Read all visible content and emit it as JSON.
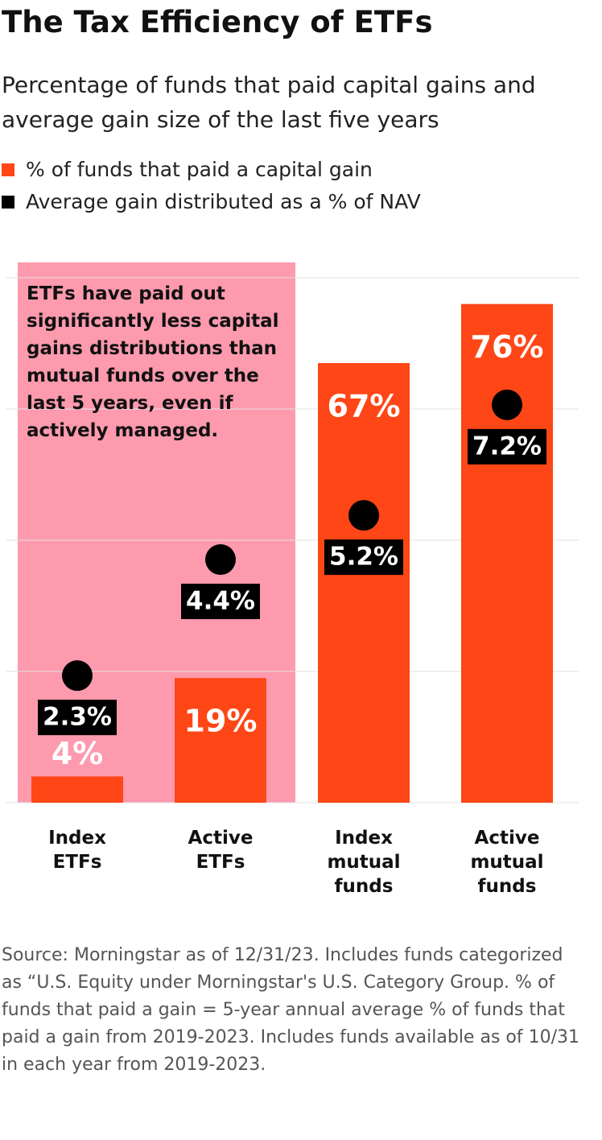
{
  "chart_data": {
    "type": "bar",
    "title": "The Tax Efficiency of ETFs",
    "subtitle": "Percentage of funds that paid capital gains and average gain size of the last five years",
    "annotation": "ETFs have paid out significantly less capital gains distributions than mutual funds over the last 5 years, even if actively managed.",
    "source": "Source: Morningstar as of 12/31/23. Includes funds categorized as “U.S. Equity under Morningstar's U.S. Category Group. % of funds that paid a gain = 5-year annual average % of funds that paid a gain from 2019-2023. Includes funds available as of 10/31 in each year from 2019-2023.",
    "categories": [
      "Index ETFs",
      "Active ETFs",
      "Index mutual funds",
      "Active mutual funds"
    ],
    "series": [
      {
        "name": "% of funds that paid a capital gain",
        "color": "#ff4616",
        "values": [
          4,
          19,
          67,
          76
        ],
        "value_labels": [
          "4%",
          "19%",
          "67%",
          "76%"
        ]
      },
      {
        "name": "Average gain distributed as a % of NAV",
        "color": "#000000",
        "axis": "y2",
        "values": [
          2.3,
          4.4,
          5.2,
          7.2
        ],
        "value_labels": [
          "2.3%",
          "4.4%",
          "5.2%",
          "7.2%"
        ]
      }
    ],
    "ylim": [
      0,
      80
    ],
    "yticks": [
      0,
      20,
      40,
      60,
      80
    ],
    "y2lim": [
      0,
      9.5
    ],
    "grid": true,
    "highlight_color": "#fd9aae"
  }
}
